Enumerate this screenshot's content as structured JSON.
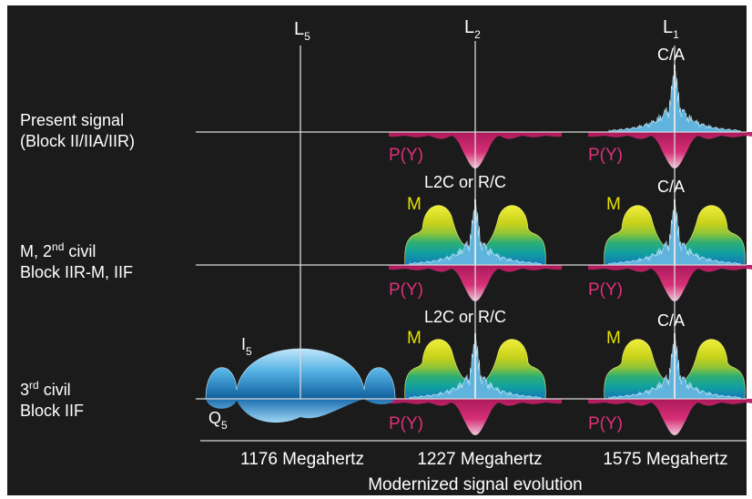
{
  "colors": {
    "background": "#1b1b1b",
    "grid": "#d8d8d8",
    "ca_blue": "#5fb3dd",
    "py_pink": "#e0307a",
    "m_yellow": "#d4d400",
    "m_green": "#20a070",
    "l5_blue": "#5aa9dc"
  },
  "bands": {
    "l5": {
      "letter": "L",
      "sub": "5",
      "freq": "1176 Megahertz"
    },
    "l2": {
      "letter": "L",
      "sub": "2",
      "freq": "1227 Megahertz"
    },
    "l1": {
      "letter": "L",
      "sub": "1",
      "freq": "1575 Megahertz"
    }
  },
  "rows": {
    "present": {
      "line1": "Present signal",
      "line2": "(Block II/IIA/IIR)"
    },
    "mciv": {
      "line1_pre": "M, 2",
      "line1_sup": "nd",
      "line1_post": " civil",
      "line2": "Block IIR-M, IIF"
    },
    "third": {
      "line1_sup_pre": "3",
      "line1_sup": "rd",
      "line1_post": " civil",
      "line2": "Block IIF"
    }
  },
  "signals": {
    "ca": "C/A",
    "py": "P(Y)",
    "m": "M",
    "l2c": "L2C or R/C",
    "i5": {
      "letter": "I",
      "sub": "5"
    },
    "q5": {
      "letter": "Q",
      "sub": "5"
    }
  },
  "caption": "Modernized signal evolution"
}
